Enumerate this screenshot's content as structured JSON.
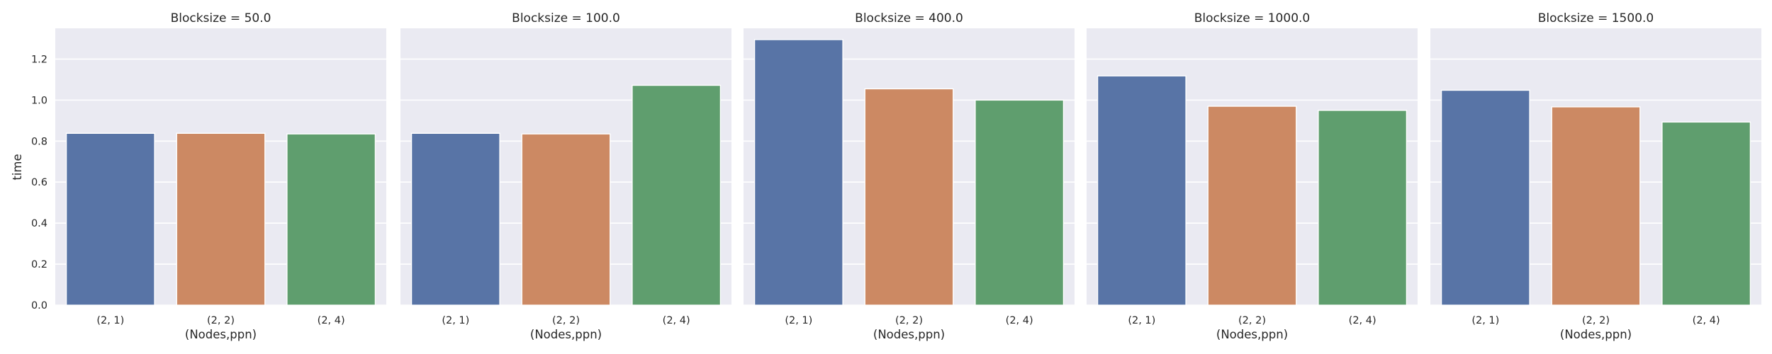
{
  "chart_data": {
    "type": "bar",
    "ylabel": "time",
    "xlabel": "(Nodes,ppn)",
    "ylim": [
      0,
      1.35
    ],
    "yticks": [
      "0.0",
      "0.2",
      "0.4",
      "0.6",
      "0.8",
      "1.0",
      "1.2"
    ],
    "grid": true,
    "palette": [
      "#5874a6",
      "#cc8963",
      "#5f9e6e"
    ],
    "categories": [
      "(2, 1)",
      "(2, 2)",
      "(2, 4)"
    ],
    "panels": [
      {
        "title": "Blocksize = 50.0",
        "values": [
          0.838,
          0.838,
          0.835
        ]
      },
      {
        "title": "Blocksize = 100.0",
        "values": [
          0.838,
          0.835,
          1.072
        ]
      },
      {
        "title": "Blocksize = 400.0",
        "values": [
          1.295,
          1.055,
          1.0
        ]
      },
      {
        "title": "Blocksize = 1000.0",
        "values": [
          1.118,
          0.97,
          0.95
        ]
      },
      {
        "title": "Blocksize = 1500.0",
        "values": [
          1.048,
          0.967,
          0.893
        ]
      }
    ]
  }
}
